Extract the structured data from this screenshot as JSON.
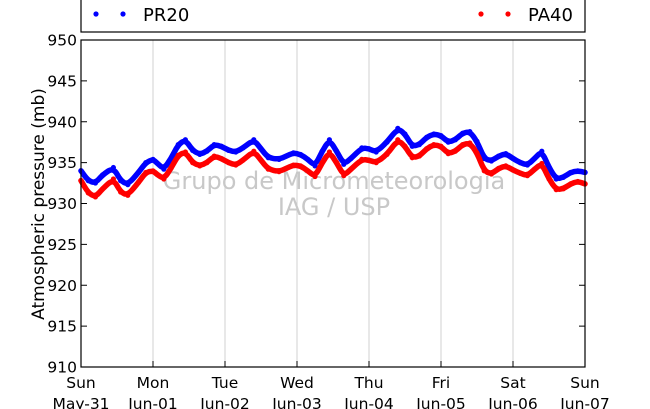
{
  "chart_data": {
    "type": "line",
    "ylabel": "Atmospheric pressure (mb)",
    "ylim": [
      910,
      950
    ],
    "yticks": [
      910,
      915,
      920,
      925,
      930,
      935,
      940,
      945,
      950
    ],
    "xlim": [
      0,
      7
    ],
    "xticks": [
      {
        "day": "Sun",
        "date": "May-31"
      },
      {
        "day": "Mon",
        "date": "Jun-01"
      },
      {
        "day": "Tue",
        "date": "Jun-02"
      },
      {
        "day": "Wed",
        "date": "Jun-03"
      },
      {
        "day": "Thu",
        "date": "Jun-04"
      },
      {
        "day": "Fri",
        "date": "Jun-05"
      },
      {
        "day": "Sat",
        "date": "Jun-06"
      },
      {
        "day": "Sun",
        "date": "Jun-07"
      }
    ],
    "grid": "vertical",
    "legend_position": "top",
    "watermark": [
      "Grupo de Micrometeorologia",
      "IAG / USP"
    ],
    "series": [
      {
        "name": "PR20",
        "color": "#0000ff",
        "x": [
          0,
          0.1,
          0.2,
          0.3,
          0.45,
          0.55,
          0.65,
          0.8,
          0.9,
          1.0,
          1.05,
          1.15,
          1.25,
          1.35,
          1.45,
          1.55,
          1.65,
          1.75,
          1.85,
          1.95,
          2.05,
          2.15,
          2.25,
          2.4,
          2.5,
          2.6,
          2.75,
          2.85,
          2.95,
          3.05,
          3.15,
          3.25,
          3.35,
          3.45,
          3.55,
          3.65,
          3.75,
          3.9,
          4.0,
          4.1,
          4.25,
          4.4,
          4.5,
          4.6,
          4.7,
          4.8,
          4.9,
          5.0,
          5.1,
          5.2,
          5.3,
          5.4,
          5.5,
          5.6,
          5.7,
          5.8,
          5.9,
          6.0,
          6.1,
          6.2,
          6.3,
          6.4,
          6.5,
          6.6,
          6.7,
          6.8,
          6.9,
          7.0
        ],
        "y": [
          934.0,
          932.8,
          932.5,
          933.5,
          934.4,
          932.8,
          932.3,
          933.8,
          935.0,
          935.4,
          935.0,
          934.2,
          935.5,
          937.2,
          937.8,
          936.5,
          936.0,
          936.4,
          937.2,
          937.0,
          936.5,
          936.3,
          936.8,
          937.8,
          936.7,
          935.6,
          935.4,
          935.8,
          936.2,
          936.0,
          935.4,
          934.6,
          936.4,
          937.8,
          936.4,
          934.8,
          935.5,
          936.8,
          936.7,
          936.3,
          937.5,
          939.2,
          938.5,
          937.0,
          937.2,
          938.1,
          938.5,
          938.3,
          937.5,
          937.8,
          938.6,
          938.8,
          937.6,
          935.5,
          935.2,
          935.8,
          936.1,
          935.5,
          935.0,
          934.7,
          935.5,
          936.4,
          934.4,
          933.0,
          933.2,
          933.8,
          934.0,
          933.8
        ]
      },
      {
        "name": "PA40",
        "color": "#ff0000",
        "x": [
          0,
          0.1,
          0.2,
          0.3,
          0.45,
          0.55,
          0.65,
          0.8,
          0.9,
          1.0,
          1.05,
          1.15,
          1.25,
          1.35,
          1.45,
          1.55,
          1.65,
          1.75,
          1.85,
          1.95,
          2.05,
          2.15,
          2.25,
          2.4,
          2.5,
          2.6,
          2.75,
          2.85,
          2.95,
          3.05,
          3.15,
          3.25,
          3.35,
          3.45,
          3.55,
          3.65,
          3.75,
          3.9,
          4.0,
          4.1,
          4.25,
          4.4,
          4.5,
          4.6,
          4.7,
          4.8,
          4.9,
          5.0,
          5.1,
          5.2,
          5.3,
          5.4,
          5.5,
          5.6,
          5.7,
          5.8,
          5.9,
          6.0,
          6.1,
          6.2,
          6.3,
          6.4,
          6.5,
          6.6,
          6.7,
          6.8,
          6.9,
          7.0
        ],
        "y": [
          932.8,
          931.3,
          930.8,
          931.8,
          933.0,
          931.4,
          931.0,
          932.6,
          933.8,
          934.0,
          933.6,
          933.0,
          934.3,
          935.9,
          936.3,
          935.0,
          934.6,
          935.0,
          935.8,
          935.5,
          935.0,
          934.7,
          935.3,
          936.4,
          935.3,
          934.2,
          933.9,
          934.3,
          934.7,
          934.6,
          934.0,
          933.3,
          935.0,
          936.3,
          935.0,
          933.4,
          934.2,
          935.4,
          935.3,
          935.0,
          936.0,
          937.8,
          937.0,
          935.6,
          935.8,
          936.7,
          937.2,
          937.0,
          936.1,
          936.4,
          937.2,
          937.4,
          936.2,
          934.0,
          933.6,
          934.3,
          934.6,
          934.1,
          933.7,
          933.4,
          934.2,
          934.9,
          933.0,
          931.7,
          931.8,
          932.4,
          932.7,
          932.4
        ]
      }
    ]
  }
}
